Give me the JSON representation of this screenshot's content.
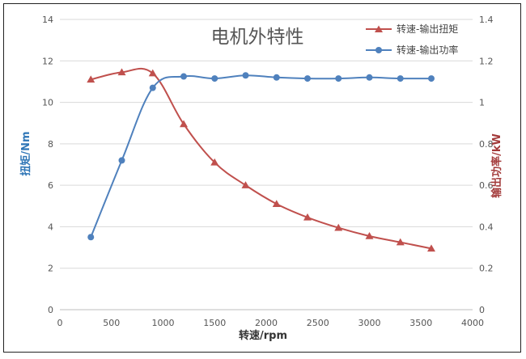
{
  "chart_data": {
    "type": "line",
    "title": "电机外特性",
    "xlabel": "转速/rpm",
    "ylabel_left": "扭矩/Nm",
    "ylabel_right": "输出功率/kW",
    "xlim": [
      0,
      4000
    ],
    "ylim_left": [
      0,
      14
    ],
    "ylim_right": [
      0,
      1.4
    ],
    "x_ticks": [
      "0",
      "500",
      "1000",
      "1500",
      "2000",
      "2500",
      "3000",
      "3500",
      "4000"
    ],
    "y_left_ticks": [
      "0",
      "2",
      "4",
      "6",
      "8",
      "10",
      "12",
      "14"
    ],
    "y_right_ticks": [
      "0",
      "0.2",
      "0.4",
      "0.6",
      "0.8",
      "1",
      "1.2",
      "1.4"
    ],
    "grid": "horizontal",
    "legend_position": "top-right",
    "series": [
      {
        "name": "转速-输出扭矩",
        "axis": "left",
        "color": "#c0504d",
        "marker": "triangle",
        "x": [
          300,
          600,
          900,
          1200,
          1500,
          1800,
          2100,
          2400,
          2700,
          3000,
          3300,
          3600
        ],
        "y": [
          11.1,
          11.45,
          11.4,
          8.95,
          7.1,
          6.0,
          5.1,
          4.45,
          3.95,
          3.55,
          3.25,
          2.95
        ]
      },
      {
        "name": "转速-输出功率",
        "axis": "right",
        "color": "#4f81bd",
        "marker": "circle",
        "x": [
          300,
          600,
          900,
          1200,
          1500,
          1800,
          2100,
          2400,
          2700,
          3000,
          3300,
          3600
        ],
        "y": [
          0.35,
          0.72,
          1.07,
          1.125,
          1.115,
          1.13,
          1.12,
          1.115,
          1.115,
          1.12,
          1.115,
          1.115
        ]
      }
    ]
  }
}
